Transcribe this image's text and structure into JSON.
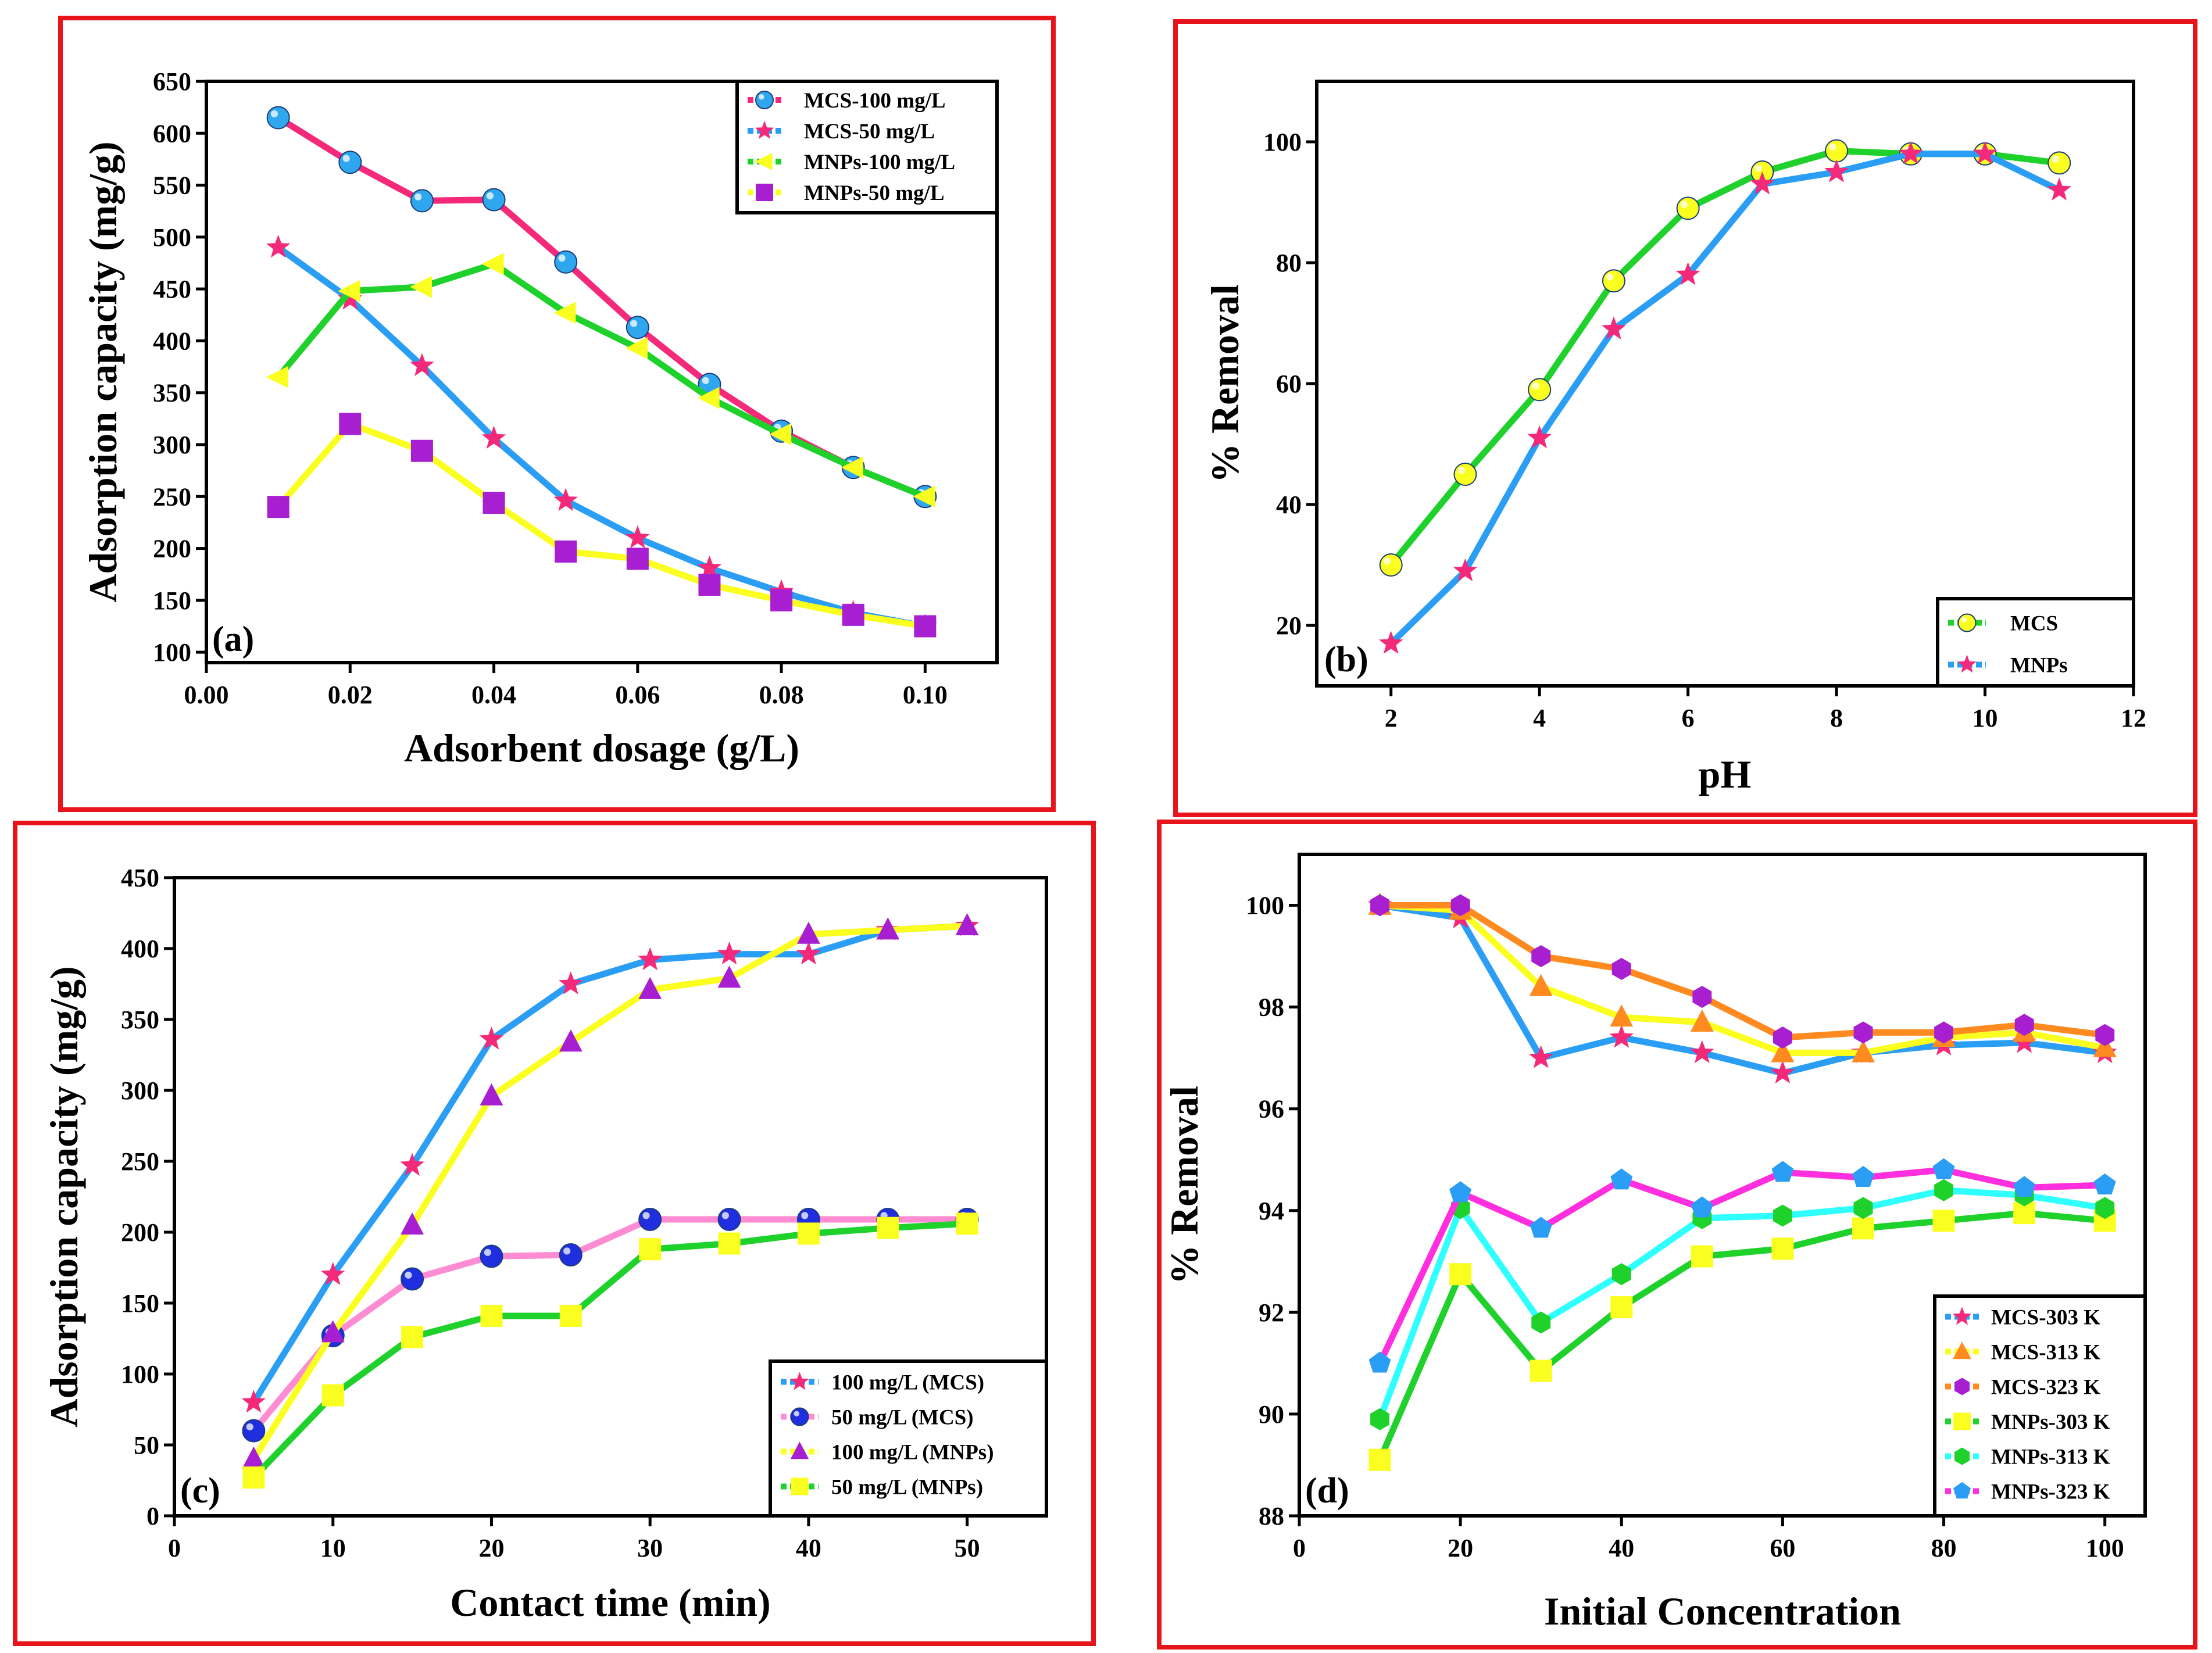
{
  "colors": {
    "frame": "#e8141c"
  },
  "chart_data": [
    {
      "id": "a",
      "type": "line",
      "panel_label": "(a)",
      "xlabel": "Adsorbent dosage (g/L)",
      "ylabel": "Adsorption capacity (mg/g)",
      "xlim": [
        0.0,
        0.11
      ],
      "ylim": [
        90,
        650
      ],
      "xticks": [
        0.0,
        0.02,
        0.04,
        0.06,
        0.08,
        0.1
      ],
      "xtick_labels": [
        "0.00",
        "0.02",
        "0.04",
        "0.06",
        "0.08",
        "0.10"
      ],
      "yticks": [
        100,
        150,
        200,
        250,
        300,
        350,
        400,
        450,
        500,
        550,
        600,
        650
      ],
      "ytick_labels": [
        "100",
        "150",
        "200",
        "250",
        "300",
        "350",
        "400",
        "450",
        "500",
        "550",
        "600",
        "650"
      ],
      "legend_position": "top-right",
      "x": [
        0.01,
        0.02,
        0.03,
        0.04,
        0.05,
        0.06,
        0.07,
        0.08,
        0.09,
        0.1
      ],
      "series": [
        {
          "name": "MCS-100 mg/L",
          "line_color": "#f5297a",
          "marker": "sphere",
          "marker_color": "#2fa7ee",
          "values": [
            615,
            572,
            535,
            536,
            476,
            413,
            358,
            313,
            278,
            250
          ]
        },
        {
          "name": "MCS-50 mg/L",
          "line_color": "#2a9df4",
          "marker": "star",
          "marker_color": "#f5297a",
          "values": [
            490,
            440,
            376,
            306,
            246,
            210,
            181,
            158,
            138,
            125
          ]
        },
        {
          "name": "MNPs-100 mg/L",
          "line_color": "#1fd12b",
          "marker": "triangle-left",
          "marker_color": "#fbff1f",
          "values": [
            365,
            448,
            452,
            474,
            427,
            393,
            345,
            310,
            278,
            250
          ]
        },
        {
          "name": "MNPs-50 mg/L",
          "line_color": "#fbff1f",
          "marker": "square",
          "marker_color": "#a71fd0",
          "values": [
            240,
            320,
            294,
            244,
            197,
            190,
            165,
            150,
            136,
            125
          ]
        }
      ]
    },
    {
      "id": "b",
      "type": "line",
      "panel_label": "(b)",
      "xlabel": "pH",
      "ylabel": "% Removal",
      "xlim": [
        1,
        12
      ],
      "ylim": [
        10,
        110
      ],
      "xticks": [
        2,
        4,
        6,
        8,
        10,
        12
      ],
      "xtick_labels": [
        "2",
        "4",
        "6",
        "8",
        "10",
        "12"
      ],
      "yticks": [
        20,
        40,
        60,
        80,
        100
      ],
      "ytick_labels": [
        "20",
        "40",
        "60",
        "80",
        "100"
      ],
      "legend_position": "bottom-right",
      "x": [
        2,
        3,
        4,
        5,
        6,
        7,
        8,
        9,
        10,
        11
      ],
      "series": [
        {
          "name": "MCS",
          "line_color": "#1fd12b",
          "marker": "sphere",
          "marker_color": "#fbff1f",
          "values": [
            30,
            45,
            59,
            77,
            89,
            95,
            98.5,
            98,
            98,
            96.5
          ]
        },
        {
          "name": "MNPs",
          "line_color": "#2a9df4",
          "marker": "star",
          "marker_color": "#f5297a",
          "values": [
            17,
            29,
            51,
            69,
            78,
            93,
            95,
            98,
            98,
            92
          ]
        }
      ]
    },
    {
      "id": "c",
      "type": "line",
      "panel_label": "(c)",
      "xlabel": "Contact time (min)",
      "ylabel": "Adsorption capacity (mg/g)",
      "xlim": [
        0,
        55
      ],
      "ylim": [
        0,
        450
      ],
      "xticks": [
        0,
        10,
        20,
        30,
        40,
        50
      ],
      "xtick_labels": [
        "0",
        "10",
        "20",
        "30",
        "40",
        "50"
      ],
      "yticks": [
        0,
        50,
        100,
        150,
        200,
        250,
        300,
        350,
        400,
        450
      ],
      "ytick_labels": [
        "0",
        "50",
        "100",
        "150",
        "200",
        "250",
        "300",
        "350",
        "400",
        "450"
      ],
      "legend_position": "bottom-right",
      "x": [
        5,
        10,
        15,
        20,
        25,
        30,
        35,
        40,
        45,
        50
      ],
      "series": [
        {
          "name": "100 mg/L (MCS)",
          "line_color": "#2a9df4",
          "marker": "star",
          "marker_color": "#f5297a",
          "values": [
            80,
            170,
            247,
            336,
            375,
            392,
            396,
            396,
            413,
            416
          ]
        },
        {
          "name": "50 mg/L (MCS)",
          "line_color": "#ff8bd3",
          "marker": "sphere",
          "marker_color": "#1f2fe0",
          "values": [
            60,
            127,
            167,
            183,
            184,
            209,
            209,
            209,
            209,
            209
          ]
        },
        {
          "name": "100 mg/L (MNPs)",
          "line_color": "#fbff1f",
          "marker": "triangle-up",
          "marker_color": "#a71fd0",
          "values": [
            40,
            129,
            205,
            296,
            334,
            371,
            379,
            410,
            413,
            416
          ]
        },
        {
          "name": "50 mg/L (MNPs)",
          "line_color": "#1fd12b",
          "marker": "square",
          "marker_color": "#fbff1f",
          "values": [
            27,
            85,
            126,
            141,
            141,
            188,
            192,
            199,
            203,
            206
          ]
        }
      ]
    },
    {
      "id": "d",
      "type": "line",
      "panel_label": "(d)",
      "xlabel": "Initial Concentration",
      "ylabel": "% Removal",
      "xlim": [
        0,
        105
      ],
      "ylim": [
        88,
        101
      ],
      "xticks": [
        0,
        20,
        40,
        60,
        80,
        100
      ],
      "xtick_labels": [
        "0",
        "20",
        "40",
        "60",
        "80",
        "100"
      ],
      "yticks": [
        88,
        90,
        92,
        94,
        96,
        98,
        100
      ],
      "ytick_labels": [
        "88",
        "90",
        "92",
        "94",
        "96",
        "98",
        "100"
      ],
      "legend_position": "bottom-right",
      "x": [
        10,
        20,
        30,
        40,
        50,
        60,
        70,
        80,
        90,
        100
      ],
      "series": [
        {
          "name": "MCS-303 K",
          "line_color": "#2a9df4",
          "marker": "star",
          "marker_color": "#f5297a",
          "values": [
            100,
            99.75,
            97.0,
            97.4,
            97.1,
            96.7,
            97.1,
            97.25,
            97.3,
            97.1
          ]
        },
        {
          "name": "MCS-313 K",
          "line_color": "#fbff1f",
          "marker": "triangle-up",
          "marker_color": "#ff8a1f",
          "values": [
            100,
            99.9,
            98.4,
            97.8,
            97.7,
            97.1,
            97.1,
            97.4,
            97.5,
            97.2
          ]
        },
        {
          "name": "MCS-323 K",
          "line_color": "#ff8a1f",
          "marker": "hexagon",
          "marker_color": "#a71fd0",
          "values": [
            100,
            100,
            99.0,
            98.75,
            98.2,
            97.4,
            97.5,
            97.5,
            97.65,
            97.45
          ]
        },
        {
          "name": "MNPs-303 K",
          "line_color": "#1fd12b",
          "marker": "square",
          "marker_color": "#fbff1f",
          "values": [
            89.1,
            92.75,
            90.85,
            92.1,
            93.1,
            93.25,
            93.65,
            93.8,
            93.95,
            93.8
          ]
        },
        {
          "name": "MNPs-313 K",
          "line_color": "#2fffff",
          "marker": "hexagon",
          "marker_color": "#1fd12b",
          "values": [
            89.9,
            94.05,
            91.8,
            92.75,
            93.85,
            93.9,
            94.05,
            94.4,
            94.3,
            94.05
          ]
        },
        {
          "name": "MNPs-323 K",
          "line_color": "#ff2fe0",
          "marker": "pentagon",
          "marker_color": "#2a9df4",
          "values": [
            91.0,
            94.35,
            93.65,
            94.6,
            94.05,
            94.75,
            94.65,
            94.8,
            94.45,
            94.5
          ]
        }
      ]
    }
  ]
}
